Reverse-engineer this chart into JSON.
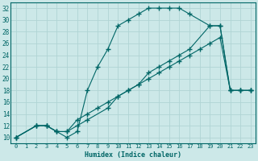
{
  "xlabel": "Humidex (Indice chaleur)",
  "bg_color": "#cce8e8",
  "grid_color": "#b0d4d4",
  "line_color": "#006666",
  "xlim": [
    -0.5,
    23.5
  ],
  "ylim": [
    9,
    33
  ],
  "xticks": [
    0,
    1,
    2,
    3,
    4,
    5,
    6,
    7,
    8,
    9,
    10,
    11,
    12,
    13,
    14,
    15,
    16,
    17,
    18,
    19,
    20,
    21,
    22,
    23
  ],
  "yticks": [
    10,
    12,
    14,
    16,
    18,
    20,
    22,
    24,
    26,
    28,
    30,
    32
  ],
  "line1_x": [
    0,
    2,
    3,
    4,
    5,
    6,
    7,
    9,
    10,
    11,
    12,
    13,
    14,
    15,
    16,
    17,
    19,
    20,
    21,
    22,
    23
  ],
  "line1_y": [
    10,
    12,
    12,
    11,
    11,
    12,
    13,
    15,
    17,
    18,
    19,
    21,
    22,
    23,
    24,
    25,
    29,
    29,
    18,
    18,
    18
  ],
  "line2_x": [
    0,
    2,
    3,
    4,
    5,
    6,
    7,
    8,
    9,
    10,
    11,
    12,
    13,
    14,
    15,
    16,
    17,
    19,
    20,
    21,
    22,
    23
  ],
  "line2_y": [
    10,
    12,
    12,
    11,
    10,
    11,
    18,
    22,
    25,
    29,
    30,
    31,
    32,
    32,
    32,
    32,
    31,
    29,
    29,
    18,
    18,
    18
  ],
  "line3_x": [
    0,
    2,
    3,
    4,
    5,
    6,
    7,
    8,
    9,
    10,
    11,
    12,
    13,
    14,
    15,
    16,
    17,
    18,
    19,
    20,
    21,
    22,
    23
  ],
  "line3_y": [
    10,
    12,
    12,
    11,
    11,
    13,
    14,
    15,
    16,
    17,
    18,
    19,
    20,
    21,
    22,
    23,
    24,
    25,
    26,
    27,
    18,
    18,
    18
  ]
}
